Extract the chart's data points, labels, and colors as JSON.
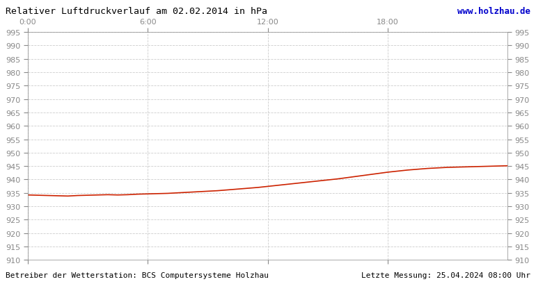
{
  "title": "Relativer Luftdruckverlauf am 02.02.2014 in hPa",
  "url_text": "www.holzhau.de",
  "footer_left": "Betreiber der Wetterstation: BCS Computersysteme Holzhau",
  "footer_right": "Letzte Messung: 25.04.2024 08:00 Uhr",
  "ylim": [
    910,
    995
  ],
  "ytick_step": 5,
  "xtick_labels": [
    "0:00",
    "6:00",
    "12:00",
    "18:00"
  ],
  "xtick_positions": [
    0,
    6,
    12,
    18
  ],
  "background_color": "#ffffff",
  "plot_bg_color": "#ffffff",
  "line_color": "#cc2200",
  "grid_color": "#cccccc",
  "title_color": "#000000",
  "url_color": "#0000cc",
  "tick_color": "#888888",
  "pressure_x": [
    0.0,
    0.5,
    1.0,
    1.5,
    2.0,
    2.5,
    3.0,
    3.5,
    4.0,
    4.5,
    5.0,
    5.5,
    6.0,
    6.5,
    7.0,
    7.5,
    8.0,
    8.5,
    9.0,
    9.5,
    10.0,
    10.5,
    11.0,
    11.5,
    12.0,
    12.5,
    13.0,
    13.5,
    14.0,
    14.5,
    15.0,
    15.5,
    16.0,
    16.5,
    17.0,
    17.5,
    18.0,
    18.5,
    19.0,
    19.5,
    20.0,
    20.5,
    21.0,
    21.5,
    22.0,
    22.5,
    23.0,
    23.5,
    24.0
  ],
  "pressure_y": [
    934.2,
    934.1,
    934.0,
    933.9,
    933.8,
    934.0,
    934.1,
    934.2,
    934.3,
    934.2,
    934.3,
    934.5,
    934.6,
    934.7,
    934.8,
    935.0,
    935.2,
    935.4,
    935.6,
    935.8,
    936.1,
    936.4,
    936.7,
    937.0,
    937.4,
    937.8,
    938.2,
    938.6,
    939.0,
    939.4,
    939.8,
    940.2,
    940.7,
    941.2,
    941.7,
    942.2,
    942.7,
    943.1,
    943.5,
    943.8,
    944.1,
    944.3,
    944.5,
    944.6,
    944.7,
    944.8,
    944.9,
    945.0,
    945.1
  ]
}
